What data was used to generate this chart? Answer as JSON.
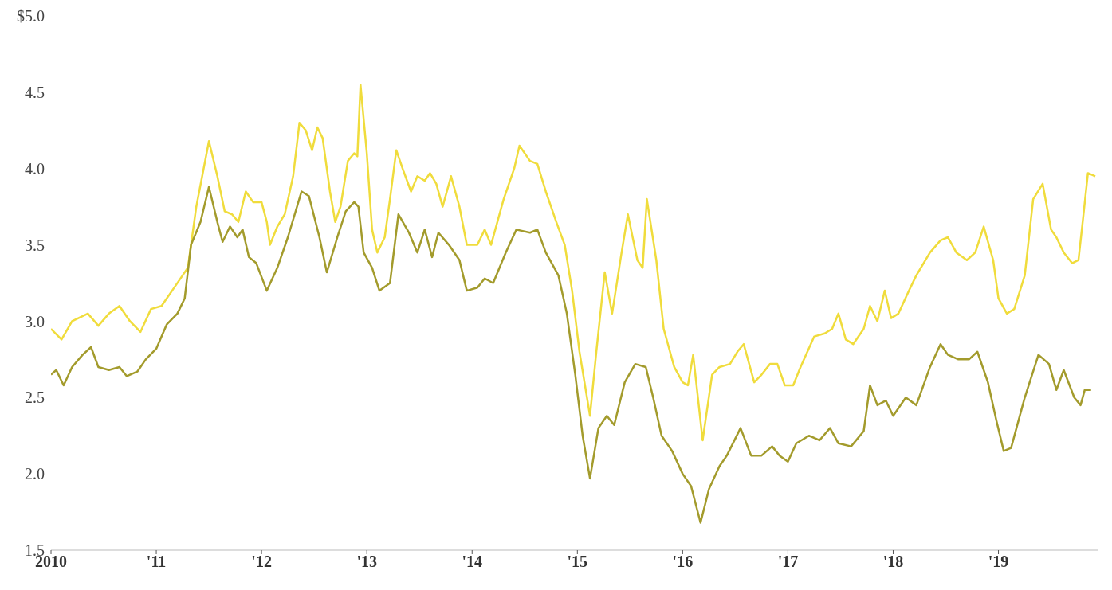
{
  "chart_data": {
    "type": "line",
    "xlim": [
      2010,
      2019.95
    ],
    "xticks": [
      {
        "value": 2010,
        "label": "2010"
      },
      {
        "value": 2011,
        "label": "'11"
      },
      {
        "value": 2012,
        "label": "'12"
      },
      {
        "value": 2013,
        "label": "'13"
      },
      {
        "value": 2014,
        "label": "'14"
      },
      {
        "value": 2015,
        "label": "'15"
      },
      {
        "value": 2016,
        "label": "'16"
      },
      {
        "value": 2017,
        "label": "'17"
      },
      {
        "value": 2018,
        "label": "'18"
      },
      {
        "value": 2019,
        "label": "'19"
      }
    ],
    "ylim": [
      1.5,
      5
    ],
    "yticks": [
      {
        "value": 1.5,
        "label": "1.5"
      },
      {
        "value": 2,
        "label": "2.0"
      },
      {
        "value": 2.5,
        "label": "2.5"
      },
      {
        "value": 3,
        "label": "3.0"
      },
      {
        "value": 3.5,
        "label": "3.5"
      },
      {
        "value": 4,
        "label": "4.0"
      },
      {
        "value": 4.5,
        "label": "4.5"
      },
      {
        "value": 5,
        "label": "$5.0"
      }
    ],
    "grid": false,
    "legend": false,
    "marker": "none",
    "line_style": "solid",
    "series": [
      {
        "color": "#f0dc3c",
        "x": [
          2010,
          2010.1,
          2010.2,
          2010.35,
          2010.45,
          2010.55,
          2010.65,
          2010.75,
          2010.85,
          2010.95,
          2011.05,
          2011.15,
          2011.25,
          2011.3,
          2011.38,
          2011.45,
          2011.5,
          2011.58,
          2011.65,
          2011.72,
          2011.78,
          2011.85,
          2011.92,
          2012,
          2012.05,
          2012.08,
          2012.15,
          2012.22,
          2012.3,
          2012.36,
          2012.42,
          2012.48,
          2012.53,
          2012.58,
          2012.65,
          2012.7,
          2012.75,
          2012.82,
          2012.88,
          2012.91,
          2012.94,
          2013,
          2013.05,
          2013.1,
          2013.17,
          2013.22,
          2013.28,
          2013.35,
          2013.42,
          2013.48,
          2013.55,
          2013.6,
          2013.66,
          2013.72,
          2013.8,
          2013.88,
          2013.95,
          2014.05,
          2014.12,
          2014.18,
          2014.3,
          2014.4,
          2014.45,
          2014.55,
          2014.62,
          2014.7,
          2014.8,
          2014.88,
          2014.95,
          2015.02,
          2015.12,
          2015.18,
          2015.26,
          2015.33,
          2015.42,
          2015.48,
          2015.57,
          2015.62,
          2015.66,
          2015.75,
          2015.82,
          2015.92,
          2016,
          2016.05,
          2016.1,
          2016.19,
          2016.28,
          2016.35,
          2016.45,
          2016.52,
          2016.58,
          2016.68,
          2016.75,
          2016.83,
          2016.9,
          2016.97,
          2017.05,
          2017.12,
          2017.25,
          2017.35,
          2017.42,
          2017.48,
          2017.55,
          2017.62,
          2017.72,
          2017.78,
          2017.85,
          2017.92,
          2017.98,
          2018.05,
          2018.15,
          2018.22,
          2018.35,
          2018.45,
          2018.52,
          2018.6,
          2018.7,
          2018.78,
          2018.86,
          2018.95,
          2019,
          2019.08,
          2019.15,
          2019.25,
          2019.33,
          2019.42,
          2019.5,
          2019.55,
          2019.62,
          2019.7,
          2019.76,
          2019.8,
          2019.85,
          2019.92
        ],
        "values": [
          2.95,
          2.88,
          3,
          3.05,
          2.97,
          3.05,
          3.1,
          3,
          2.93,
          3.08,
          3.1,
          3.2,
          3.3,
          3.35,
          3.75,
          4,
          4.18,
          3.95,
          3.72,
          3.7,
          3.65,
          3.85,
          3.78,
          3.78,
          3.65,
          3.5,
          3.62,
          3.7,
          3.95,
          4.3,
          4.25,
          4.12,
          4.27,
          4.2,
          3.85,
          3.65,
          3.75,
          4.05,
          4.1,
          4.08,
          4.55,
          4.1,
          3.6,
          3.45,
          3.55,
          3.8,
          4.12,
          3.98,
          3.85,
          3.95,
          3.92,
          3.97,
          3.9,
          3.75,
          3.95,
          3.75,
          3.5,
          3.5,
          3.6,
          3.5,
          3.8,
          4,
          4.15,
          4.05,
          4.03,
          3.85,
          3.65,
          3.5,
          3.2,
          2.8,
          2.38,
          2.8,
          3.32,
          3.05,
          3.45,
          3.7,
          3.4,
          3.35,
          3.8,
          3.4,
          2.95,
          2.7,
          2.6,
          2.58,
          2.78,
          2.22,
          2.65,
          2.7,
          2.72,
          2.8,
          2.85,
          2.6,
          2.65,
          2.72,
          2.72,
          2.58,
          2.58,
          2.7,
          2.9,
          2.92,
          2.95,
          3.05,
          2.88,
          2.85,
          2.95,
          3.1,
          3,
          3.2,
          3.02,
          3.05,
          3.2,
          3.3,
          3.45,
          3.53,
          3.55,
          3.45,
          3.4,
          3.45,
          3.62,
          3.4,
          3.15,
          3.05,
          3.08,
          3.3,
          3.8,
          3.9,
          3.6,
          3.55,
          3.45,
          3.38,
          3.4,
          3.65,
          3.97,
          3.95
        ]
      },
      {
        "color": "#a39b2c",
        "x": [
          2010,
          2010.05,
          2010.12,
          2010.2,
          2010.3,
          2010.38,
          2010.45,
          2010.55,
          2010.65,
          2010.72,
          2010.82,
          2010.9,
          2011,
          2011.1,
          2011.2,
          2011.27,
          2011.33,
          2011.42,
          2011.5,
          2011.58,
          2011.63,
          2011.7,
          2011.77,
          2011.82,
          2011.88,
          2011.95,
          2012.05,
          2012.15,
          2012.25,
          2012.38,
          2012.45,
          2012.55,
          2012.62,
          2012.72,
          2012.8,
          2012.88,
          2012.92,
          2012.97,
          2013.05,
          2013.12,
          2013.22,
          2013.3,
          2013.4,
          2013.48,
          2013.55,
          2013.62,
          2013.68,
          2013.78,
          2013.88,
          2013.95,
          2014.05,
          2014.12,
          2014.2,
          2014.32,
          2014.42,
          2014.55,
          2014.62,
          2014.7,
          2014.82,
          2014.9,
          2014.98,
          2015.05,
          2015.12,
          2015.2,
          2015.28,
          2015.35,
          2015.45,
          2015.55,
          2015.65,
          2015.72,
          2015.8,
          2015.9,
          2016,
          2016.08,
          2016.17,
          2016.25,
          2016.35,
          2016.42,
          2016.55,
          2016.65,
          2016.75,
          2016.85,
          2016.92,
          2017,
          2017.08,
          2017.2,
          2017.3,
          2017.4,
          2017.48,
          2017.6,
          2017.72,
          2017.78,
          2017.85,
          2017.93,
          2018,
          2018.12,
          2018.22,
          2018.35,
          2018.45,
          2018.52,
          2018.62,
          2018.72,
          2018.8,
          2018.9,
          2018.98,
          2019.05,
          2019.12,
          2019.25,
          2019.38,
          2019.48,
          2019.55,
          2019.62,
          2019.72,
          2019.78,
          2019.82,
          2019.88
        ],
        "values": [
          2.65,
          2.68,
          2.58,
          2.7,
          2.78,
          2.83,
          2.7,
          2.68,
          2.7,
          2.64,
          2.67,
          2.75,
          2.82,
          2.98,
          3.05,
          3.15,
          3.5,
          3.65,
          3.88,
          3.65,
          3.52,
          3.62,
          3.55,
          3.6,
          3.42,
          3.38,
          3.2,
          3.35,
          3.55,
          3.85,
          3.82,
          3.55,
          3.32,
          3.55,
          3.72,
          3.78,
          3.75,
          3.45,
          3.35,
          3.2,
          3.25,
          3.7,
          3.58,
          3.45,
          3.6,
          3.42,
          3.58,
          3.5,
          3.4,
          3.2,
          3.22,
          3.28,
          3.25,
          3.45,
          3.6,
          3.58,
          3.6,
          3.45,
          3.3,
          3.05,
          2.65,
          2.25,
          1.97,
          2.3,
          2.38,
          2.32,
          2.6,
          2.72,
          2.7,
          2.5,
          2.25,
          2.15,
          2,
          1.92,
          1.68,
          1.9,
          2.05,
          2.12,
          2.3,
          2.12,
          2.12,
          2.18,
          2.12,
          2.08,
          2.2,
          2.25,
          2.22,
          2.3,
          2.2,
          2.18,
          2.28,
          2.58,
          2.45,
          2.48,
          2.38,
          2.5,
          2.45,
          2.7,
          2.85,
          2.78,
          2.75,
          2.75,
          2.8,
          2.6,
          2.35,
          2.15,
          2.17,
          2.5,
          2.78,
          2.72,
          2.55,
          2.68,
          2.5,
          2.45,
          2.55,
          2.55
        ]
      }
    ]
  }
}
